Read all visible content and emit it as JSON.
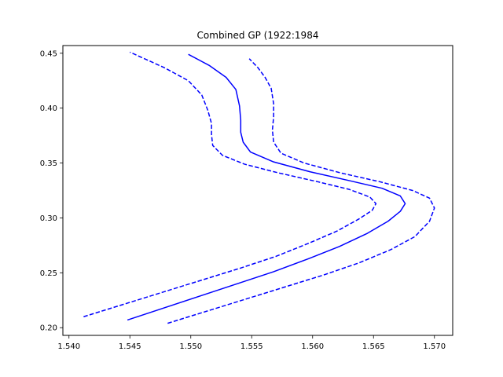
{
  "chart_data": {
    "type": "line",
    "title": "Combined GP (1922:1984",
    "xlabel": "",
    "ylabel": "",
    "xlim": [
      1.5395,
      1.5715
    ],
    "ylim": [
      0.193,
      0.457
    ],
    "xticks": [
      1.54,
      1.545,
      1.55,
      1.555,
      1.56,
      1.565,
      1.57
    ],
    "xtick_labels": [
      "1.540",
      "1.545",
      "1.550",
      "1.555",
      "1.560",
      "1.565",
      "1.570"
    ],
    "yticks": [
      0.2,
      0.25,
      0.3,
      0.35,
      0.4,
      0.45
    ],
    "ytick_labels": [
      "0.20",
      "0.25",
      "0.30",
      "0.35",
      "0.40",
      "0.45"
    ],
    "grid": false,
    "legend": "none",
    "color": "#0000ff",
    "series": [
      {
        "style": "solid",
        "points": [
          [
            1.5448,
            0.207
          ],
          [
            1.5478,
            0.218
          ],
          [
            1.5508,
            0.229
          ],
          [
            1.5538,
            0.24
          ],
          [
            1.5568,
            0.251
          ],
          [
            1.5597,
            0.263
          ],
          [
            1.5622,
            0.274
          ],
          [
            1.5645,
            0.286
          ],
          [
            1.5662,
            0.297
          ],
          [
            1.5672,
            0.306
          ],
          [
            1.5676,
            0.313
          ],
          [
            1.5672,
            0.32
          ],
          [
            1.5657,
            0.327
          ],
          [
            1.563,
            0.334
          ],
          [
            1.5598,
            0.342
          ],
          [
            1.5568,
            0.351
          ],
          [
            1.5549,
            0.36
          ],
          [
            1.5543,
            0.369
          ],
          [
            1.5541,
            0.378
          ],
          [
            1.5541,
            0.389
          ],
          [
            1.554,
            0.402
          ],
          [
            1.5537,
            0.417
          ],
          [
            1.5529,
            0.428
          ],
          [
            1.5515,
            0.439
          ],
          [
            1.5498,
            0.449
          ]
        ]
      },
      {
        "style": "dashed",
        "points": [
          [
            1.5412,
            0.21
          ],
          [
            1.5444,
            0.221
          ],
          [
            1.5476,
            0.232
          ],
          [
            1.5508,
            0.243
          ],
          [
            1.554,
            0.254
          ],
          [
            1.557,
            0.265
          ],
          [
            1.5597,
            0.277
          ],
          [
            1.562,
            0.288
          ],
          [
            1.5638,
            0.299
          ],
          [
            1.5649,
            0.307
          ],
          [
            1.5652,
            0.313
          ],
          [
            1.5647,
            0.319
          ],
          [
            1.563,
            0.326
          ],
          [
            1.5604,
            0.333
          ],
          [
            1.5572,
            0.341
          ],
          [
            1.5544,
            0.349
          ],
          [
            1.5526,
            0.357
          ],
          [
            1.5518,
            0.366
          ],
          [
            1.5517,
            0.376
          ],
          [
            1.5517,
            0.386
          ],
          [
            1.5514,
            0.398
          ],
          [
            1.5509,
            0.412
          ],
          [
            1.5498,
            0.425
          ],
          [
            1.5478,
            0.437
          ],
          [
            1.545,
            0.451
          ]
        ]
      },
      {
        "style": "dashed",
        "points": [
          [
            1.5481,
            0.204
          ],
          [
            1.5513,
            0.215
          ],
          [
            1.5545,
            0.226
          ],
          [
            1.5577,
            0.237
          ],
          [
            1.5609,
            0.248
          ],
          [
            1.5638,
            0.259
          ],
          [
            1.5664,
            0.271
          ],
          [
            1.5684,
            0.283
          ],
          [
            1.5696,
            0.297
          ],
          [
            1.57,
            0.309
          ],
          [
            1.5696,
            0.318
          ],
          [
            1.5682,
            0.325
          ],
          [
            1.5655,
            0.333
          ],
          [
            1.5623,
            0.341
          ],
          [
            1.5593,
            0.35
          ],
          [
            1.5574,
            0.359
          ],
          [
            1.5568,
            0.369
          ],
          [
            1.5567,
            0.38
          ],
          [
            1.5568,
            0.392
          ],
          [
            1.5568,
            0.404
          ],
          [
            1.5566,
            0.418
          ],
          [
            1.5561,
            0.428
          ],
          [
            1.5555,
            0.437
          ],
          [
            1.5548,
            0.445
          ]
        ]
      }
    ]
  }
}
